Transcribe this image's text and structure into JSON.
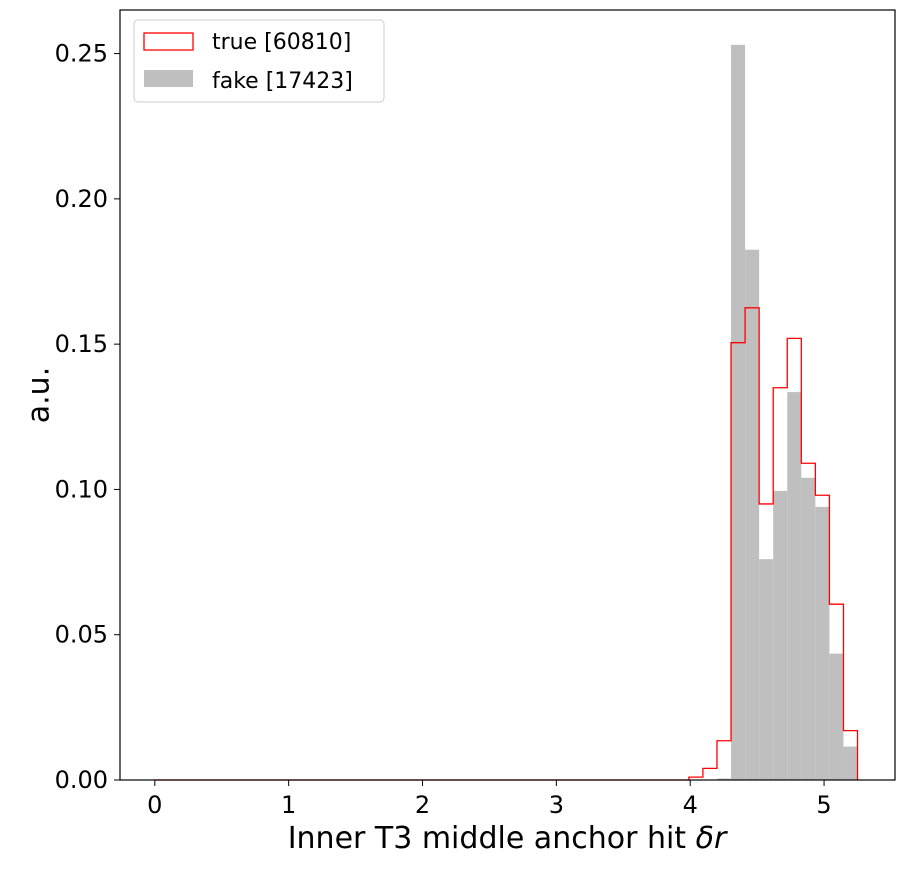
{
  "chart_data": {
    "type": "bar",
    "xlabel": "Inner T3 middle anchor hit",
    "xlabel_symbol": "δr",
    "ylabel": "a.u.",
    "xlim": [
      -0.26,
      5.53
    ],
    "ylim": [
      0,
      0.265
    ],
    "xticks": [
      "0",
      "1",
      "2",
      "3",
      "4",
      "5"
    ],
    "yticks": [
      "0.00",
      "0.05",
      "0.10",
      "0.15",
      "0.20",
      "0.25"
    ],
    "bin_edges": [
      0.0,
      0.105,
      0.21,
      0.315,
      0.42,
      0.525,
      0.63,
      0.735,
      0.84,
      0.945,
      1.05,
      1.155,
      1.26,
      1.365,
      1.47,
      1.575,
      1.68,
      1.785,
      1.89,
      1.995,
      2.1,
      2.205,
      2.31,
      2.415,
      2.52,
      2.625,
      2.73,
      2.835,
      2.94,
      3.045,
      3.15,
      3.255,
      3.36,
      3.465,
      3.57,
      3.675,
      3.78,
      3.885,
      3.99,
      4.095,
      4.2,
      4.305,
      4.41,
      4.515,
      4.62,
      4.725,
      4.83,
      4.935,
      5.04,
      5.145,
      5.25
    ],
    "series": [
      {
        "name": "true [60810]",
        "style": "step",
        "color": "#ff0000",
        "values": [
          0,
          0,
          0,
          0,
          0,
          0,
          0,
          0,
          0,
          0,
          0,
          0,
          0,
          0,
          0,
          0,
          0,
          0,
          0,
          0,
          0,
          0,
          0,
          0,
          0,
          0,
          0,
          0,
          0,
          0,
          0,
          0,
          0,
          0,
          0,
          0,
          0,
          0,
          0.001,
          0.004,
          0.0135,
          0.1505,
          0.1625,
          0.095,
          0.135,
          0.152,
          0.109,
          0.098,
          0.0605,
          0.017
        ]
      },
      {
        "name": "fake [17423]",
        "style": "filled",
        "color": "#bfbfbf",
        "values": [
          0,
          0,
          0,
          0,
          0,
          0,
          0,
          0,
          0,
          0,
          0,
          0,
          0,
          0,
          0,
          0,
          0,
          0,
          0,
          0,
          0,
          0,
          0,
          0,
          0,
          0,
          0,
          0,
          0,
          0,
          0,
          0,
          0,
          0,
          0,
          0,
          0,
          0,
          0,
          0,
          0.0005,
          0.253,
          0.1825,
          0.076,
          0.0995,
          0.1335,
          0.104,
          0.094,
          0.0435,
          0.0115
        ]
      }
    ],
    "legend": {
      "placement": "top-left"
    },
    "grid": false
  }
}
